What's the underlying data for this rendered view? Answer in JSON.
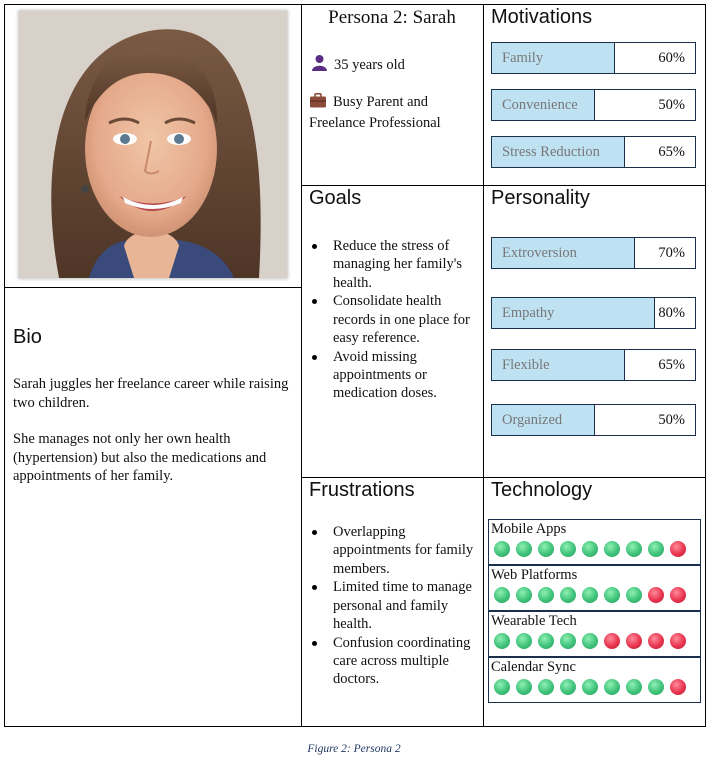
{
  "persona": {
    "name": "Persona 2: Sarah",
    "age": "35 years old",
    "occupation": "Busy Parent and Freelance Professional",
    "age_icon": "person-icon",
    "occupation_icon": "briefcase-icon"
  },
  "bio": {
    "title": "Bio",
    "paragraph1": "Sarah juggles her freelance career while raising two children.",
    "paragraph2": "She manages not only her own health (hypertension) but also the medications and appointments of her family."
  },
  "goals": {
    "title": "Goals",
    "items": [
      "Reduce the stress of managing her family's health.",
      "Consolidate health records in one place for easy reference.",
      "Avoid missing appointments or medication doses."
    ]
  },
  "frustrations": {
    "title": "Frustrations",
    "items": [
      "Overlapping appointments for family members.",
      "Limited time to manage personal and family health.",
      "Confusion coordinating care across multiple doctors."
    ]
  },
  "motivations": {
    "title": "Motivations",
    "items": [
      {
        "label": "Family",
        "percent": "60%",
        "value": 0.6
      },
      {
        "label": "Convenience",
        "percent": "50%",
        "value": 0.5
      },
      {
        "label": "Stress Reduction",
        "percent": "65%",
        "value": 0.65
      }
    ]
  },
  "personality": {
    "title": "Personality",
    "items": [
      {
        "label": "Extroversion",
        "percent": "70%",
        "value": 0.7
      },
      {
        "label": "Empathy",
        "percent": "80%",
        "value": 0.8
      },
      {
        "label": "Flexible",
        "percent": "65%",
        "value": 0.65
      },
      {
        "label": "Organized",
        "percent": "50%",
        "value": 0.5
      }
    ]
  },
  "technology": {
    "title": "Technology",
    "scale_max": 9,
    "items": [
      {
        "label": "Mobile Apps",
        "rating": 8
      },
      {
        "label": "Web Platforms",
        "rating": 7
      },
      {
        "label": "Wearable Tech",
        "rating": 5
      },
      {
        "label": "Calendar Sync",
        "rating": 8
      }
    ]
  },
  "colors": {
    "bar_fill": "#bfe2f3",
    "border": "#1c2f4a",
    "dot_on": "#3ec27a",
    "dot_off": "#e8344e",
    "caption": "#1f3864"
  },
  "caption": "Figure 2: Persona 2"
}
